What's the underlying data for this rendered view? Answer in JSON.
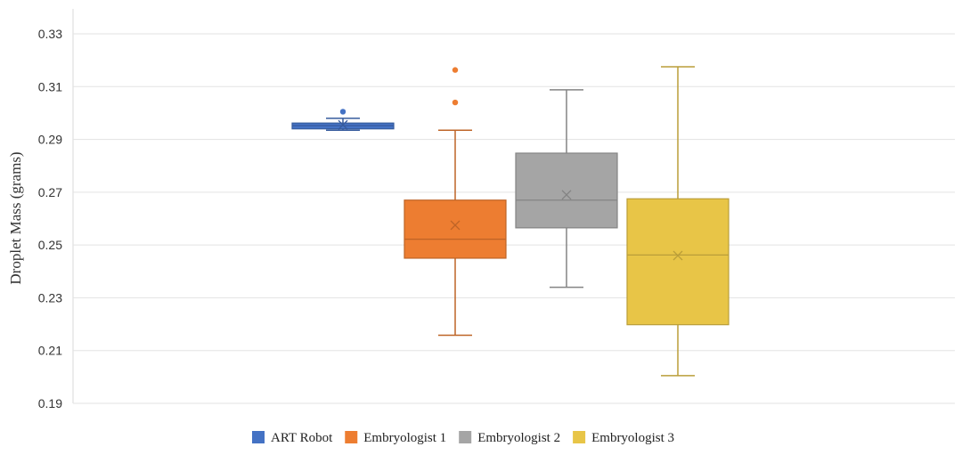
{
  "chart_data": {
    "type": "box",
    "ylabel": "Droplet Mass (grams)",
    "ylim": [
      0.19,
      0.335
    ],
    "yticks": [
      0.19,
      0.21,
      0.23,
      0.25,
      0.27,
      0.29,
      0.31,
      0.33
    ],
    "ytick_labels": [
      "0.19",
      "0.21",
      "0.23",
      "0.25",
      "0.27",
      "0.29",
      "0.31",
      "0.33"
    ],
    "grid": true,
    "legend_position": "bottom",
    "series": [
      {
        "name": "ART Robot",
        "color": "#4472c4",
        "whisker_low": 0.2935,
        "q1": 0.294,
        "median": 0.2952,
        "q3": 0.2962,
        "whisker_high": 0.298,
        "mean": 0.2955,
        "outliers": [
          0.3005
        ]
      },
      {
        "name": "Embryologist 1",
        "color": "#ed7d31",
        "whisker_low": 0.2158,
        "q1": 0.245,
        "median": 0.2522,
        "q3": 0.267,
        "whisker_high": 0.2935,
        "mean": 0.2575,
        "outliers": [
          0.304,
          0.3163
        ]
      },
      {
        "name": "Embryologist 2",
        "color": "#a5a5a5",
        "whisker_low": 0.234,
        "q1": 0.2565,
        "median": 0.267,
        "q3": 0.2848,
        "whisker_high": 0.3088,
        "mean": 0.269,
        "outliers": []
      },
      {
        "name": "Embryologist 3",
        "color": "#e8c547",
        "whisker_low": 0.2005,
        "q1": 0.2198,
        "median": 0.2462,
        "q3": 0.2675,
        "whisker_high": 0.3175,
        "mean": 0.246,
        "outliers": []
      }
    ]
  }
}
